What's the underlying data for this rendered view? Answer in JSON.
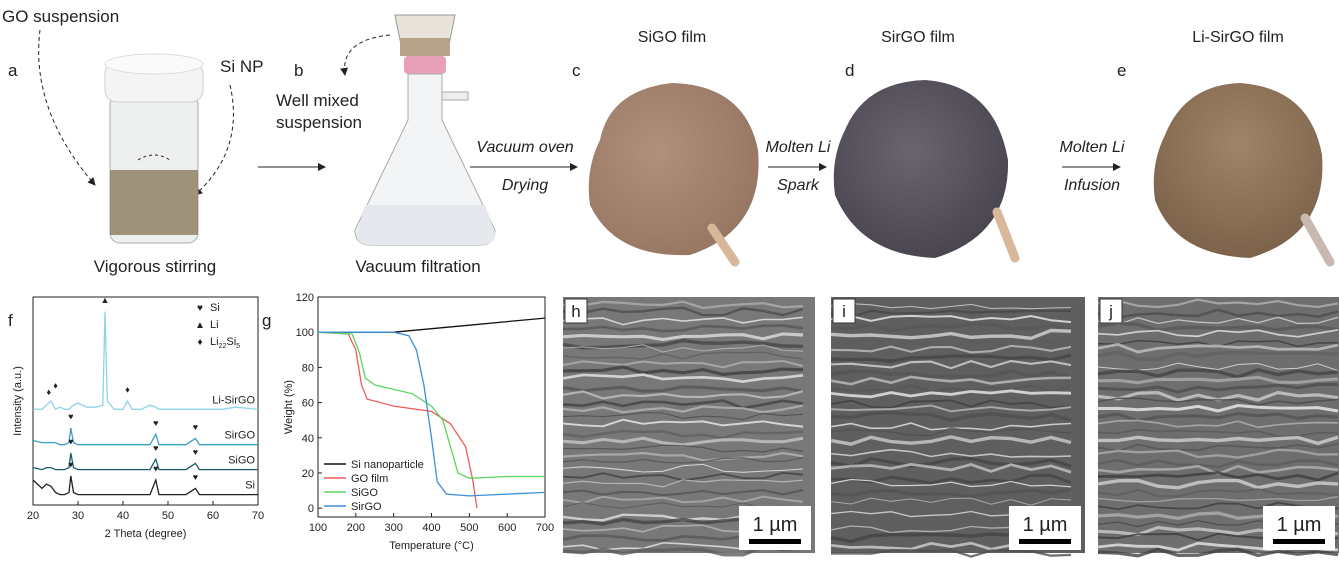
{
  "schematic": {
    "panel_labels": [
      "a",
      "b",
      "c",
      "d",
      "e"
    ],
    "go_suspension": "GO suspension",
    "si_np": "Si NP",
    "step_a": "Vigorous stirring",
    "well_mixed": [
      "Well mixed",
      "suspension"
    ],
    "step_b": "Vacuum filtration",
    "arrows": [
      {
        "top": "Vacuum oven",
        "bottom": "Drying"
      },
      {
        "top": "Molten Li",
        "bottom": "Spark"
      },
      {
        "top": "Molten Li",
        "bottom": "Infusion"
      }
    ],
    "films": [
      "SiGO film",
      "SirGO film",
      "Li-SirGO film"
    ]
  },
  "chart_data": [
    {
      "type": "line",
      "panel_label": "f",
      "xlabel": "2 Theta (degree)",
      "ylabel": "Intensity (a.u.)",
      "xlim": [
        20,
        70
      ],
      "xticks": [
        20,
        30,
        40,
        50,
        60,
        70
      ],
      "ylim": [
        0,
        100
      ],
      "x": [
        20,
        22,
        23,
        24,
        25,
        26,
        27,
        28,
        28.4,
        29,
        30,
        32,
        34,
        35.5,
        36,
        36.5,
        38,
        40,
        41,
        42,
        44,
        46,
        47.3,
        48,
        50,
        52,
        54,
        56.1,
        57,
        60,
        62,
        65,
        70
      ],
      "series": [
        {
          "name": "Si",
          "color": "#222222",
          "values": [
            12,
            8,
            10,
            9,
            6,
            5,
            5,
            6,
            14,
            6,
            5,
            5,
            5,
            5,
            5,
            5,
            5,
            5,
            5,
            5,
            5,
            5,
            12,
            5,
            5,
            5,
            5,
            8,
            5,
            5,
            5,
            5,
            5
          ]
        },
        {
          "name": "SiGO",
          "color": "#1a5f6e",
          "values": [
            18,
            17,
            18,
            18,
            17,
            17,
            17,
            18,
            25,
            18,
            17,
            17,
            17,
            17,
            17,
            17,
            17,
            17,
            17,
            17,
            17,
            17,
            22,
            17,
            17,
            17,
            17,
            20,
            17,
            17,
            17,
            17,
            17
          ]
        },
        {
          "name": "SirGO",
          "color": "#3aa0c0",
          "values": [
            31,
            30,
            30,
            30,
            30,
            29,
            29,
            30,
            37,
            30,
            29,
            29,
            29,
            29,
            29,
            29,
            29,
            29,
            29,
            29,
            29,
            29,
            34,
            29,
            29,
            29,
            29,
            32,
            29,
            29,
            29,
            29,
            29
          ]
        },
        {
          "name": "Li-SirGO",
          "color": "#8fd3e6",
          "values": [
            46,
            46,
            48,
            50,
            46,
            47,
            46,
            46,
            47,
            48,
            49,
            47,
            47,
            48,
            93,
            50,
            46,
            46,
            50,
            46,
            46,
            48,
            47,
            46,
            46,
            46,
            46,
            46,
            46,
            46,
            46,
            47,
            46
          ]
        }
      ],
      "markers": [
        {
          "x": 23.5,
          "y": 53,
          "symbol": "♦"
        },
        {
          "x": 25,
          "y": 56,
          "symbol": "♦"
        },
        {
          "x": 36,
          "y": 97,
          "symbol": "▲"
        },
        {
          "x": 41,
          "y": 54,
          "symbol": "♦"
        },
        {
          "x": 28.4,
          "y": 41,
          "symbol": "♥"
        },
        {
          "x": 47.3,
          "y": 38,
          "symbol": "♥"
        },
        {
          "x": 56.1,
          "y": 36,
          "symbol": "♥"
        },
        {
          "x": 28.4,
          "y": 29,
          "symbol": "♥"
        },
        {
          "x": 47.3,
          "y": 26,
          "symbol": "♥"
        },
        {
          "x": 56.1,
          "y": 24,
          "symbol": "♥"
        },
        {
          "x": 28.4,
          "y": 18,
          "symbol": "♥"
        },
        {
          "x": 47.3,
          "y": 16,
          "symbol": "♥"
        },
        {
          "x": 56.1,
          "y": 12,
          "symbol": "♥"
        }
      ],
      "legend": [
        {
          "symbol": "♥",
          "label_parts": [
            "Si"
          ]
        },
        {
          "symbol": "▲",
          "label_parts": [
            "Li"
          ]
        },
        {
          "symbol": "♦",
          "label_parts": [
            "Li",
            "22",
            "Si",
            "5"
          ]
        }
      ]
    },
    {
      "type": "line",
      "panel_label": "g",
      "xlabel": "Temperature (°C)",
      "ylabel": "Weight (%)",
      "xlim": [
        100,
        700
      ],
      "xticks": [
        100,
        200,
        300,
        400,
        500,
        600,
        700
      ],
      "ylim": [
        -5,
        120
      ],
      "yticks": [
        0,
        20,
        40,
        60,
        80,
        100,
        120
      ],
      "legend_position": "lower left",
      "series": [
        {
          "name": "Si nanoparticle",
          "color": "#111111",
          "x": [
            100,
            200,
            300,
            400,
            500,
            600,
            700
          ],
          "values": [
            100,
            100,
            100,
            102,
            104,
            106,
            108
          ]
        },
        {
          "name": "GO film",
          "color": "#f05a5a",
          "x": [
            100,
            180,
            200,
            215,
            230,
            300,
            400,
            450,
            490,
            510,
            520
          ],
          "values": [
            100,
            99,
            90,
            70,
            62,
            58,
            55,
            48,
            35,
            15,
            0
          ]
        },
        {
          "name": "SiGO",
          "color": "#5ad65a",
          "x": [
            100,
            190,
            210,
            225,
            250,
            350,
            400,
            430,
            450,
            470,
            500,
            600,
            700
          ],
          "values": [
            100,
            99,
            88,
            74,
            70,
            65,
            58,
            50,
            35,
            20,
            17,
            18,
            18
          ]
        },
        {
          "name": "SirGO",
          "color": "#3a8fd8",
          "x": [
            100,
            300,
            340,
            360,
            380,
            400,
            415,
            440,
            500,
            600,
            700
          ],
          "values": [
            100,
            100,
            98,
            90,
            70,
            40,
            15,
            8,
            7,
            8,
            9
          ]
        }
      ]
    }
  ],
  "sem": [
    {
      "label": "h",
      "scale_bar": "1 µm"
    },
    {
      "label": "i",
      "scale_bar": "1 µm"
    },
    {
      "label": "j",
      "scale_bar": "1 µm"
    }
  ]
}
